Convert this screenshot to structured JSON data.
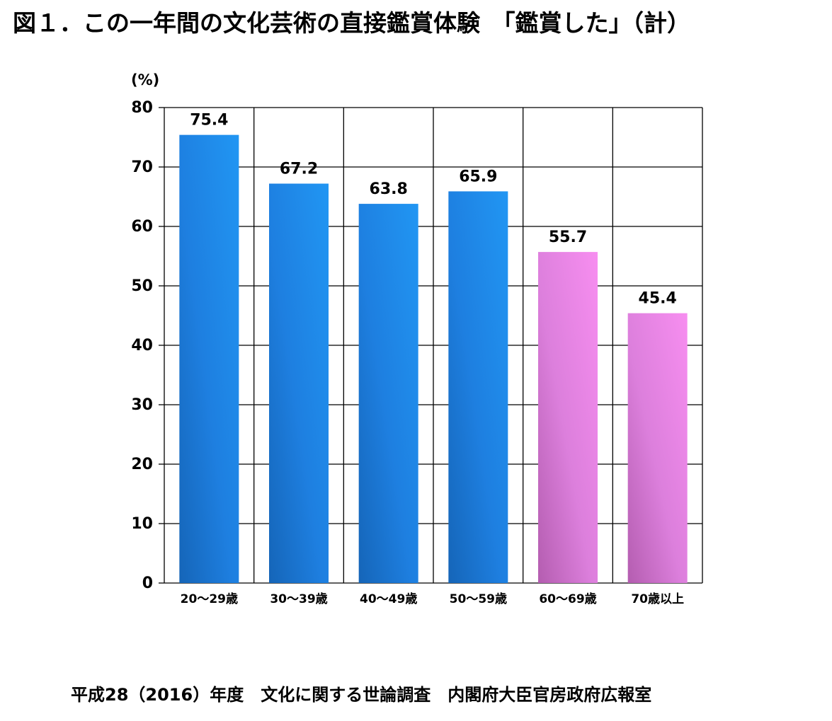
{
  "title": "図１．この一年間の文化芸術の直接鑑賞体験　「鑑賞した」（計）",
  "source": "平成28（2016）年度　文化に関する世論調査　内閣府大臣官房政府広報室",
  "chart_data": {
    "type": "bar",
    "title": "図１．この一年間の文化芸術の直接鑑賞体験　「鑑賞した」（計）",
    "ylabel": "(%)",
    "xlabel": "",
    "categories": [
      "20～29歳",
      "30～39歳",
      "40～49歳",
      "50～59歳",
      "60～69歳",
      "70歳以上"
    ],
    "values": [
      75.4,
      67.2,
      63.8,
      65.9,
      55.7,
      45.4
    ],
    "data_labels": [
      "75.4",
      "67.2",
      "63.8",
      "65.9",
      "55.7",
      "45.4"
    ],
    "bar_colors": [
      "#2196f3",
      "#2196f3",
      "#2196f3",
      "#2196f3",
      "#f78ef0",
      "#f78ef0"
    ],
    "ylim": [
      0,
      80
    ],
    "yticks": [
      0,
      10,
      20,
      30,
      40,
      50,
      60,
      70,
      80
    ],
    "grid": true,
    "legend": "none"
  }
}
